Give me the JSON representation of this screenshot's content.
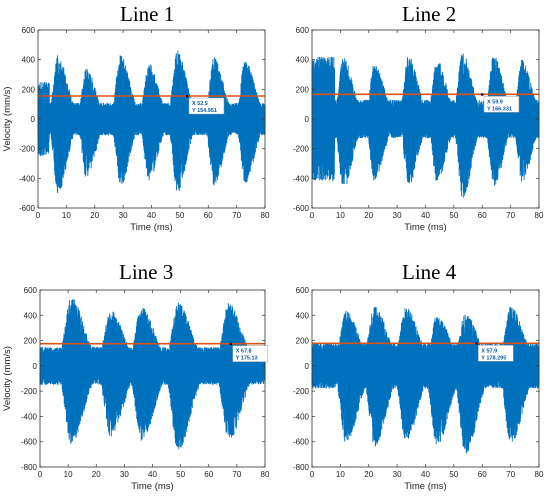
{
  "figure": {
    "panels": [
      {
        "title": "Line 1",
        "xlabel": "Time (ms)",
        "ylabel": "Velocity (mm/s)",
        "datatip": {
          "x_text": "X 52.5",
          "y_text": "Y 154.951"
        }
      },
      {
        "title": "Line 2",
        "xlabel": "Time (ms)",
        "ylabel": "",
        "datatip": {
          "x_text": "X 59.9",
          "y_text": "Y 166.331"
        }
      },
      {
        "title": "Line 3",
        "xlabel": "Time (ms)",
        "ylabel": "Velocity (mm/s)",
        "datatip": {
          "x_text": "X 67.8",
          "y_text": "Y 175.13"
        }
      },
      {
        "title": "Line 4",
        "xlabel": "Time (ms)",
        "ylabel": "",
        "datatip": {
          "x_text": "X 57.9",
          "y_text": "Y 178.295"
        }
      }
    ]
  },
  "colors": {
    "signal": "#0072BD",
    "threshold": "#D95319",
    "axes": "#333333",
    "datatip_text": "#0a5aa5"
  },
  "chart_data": [
    {
      "type": "line",
      "title": "Line 1",
      "xlabel": "Time (ms)",
      "ylabel": "Velocity (mm/s)",
      "xlim": [
        0,
        80
      ],
      "ylim": [
        -600,
        600
      ],
      "xticks": [
        0,
        10,
        20,
        30,
        40,
        50,
        60,
        70,
        80
      ],
      "yticks": [
        -600,
        -400,
        -200,
        0,
        200,
        400,
        600
      ],
      "grid": false,
      "envelope": {
        "burst_centers": [
          7,
          17,
          29,
          39,
          49,
          62,
          73
        ],
        "burst_peaks_upper": [
          430,
          340,
          440,
          380,
          470,
          420,
          410
        ],
        "burst_peaks_lower": [
          -500,
          -400,
          -460,
          -420,
          -500,
          -450,
          -440
        ],
        "burst_width_ms": 3.2,
        "baseline_amplitude": 110,
        "initial_segment": {
          "end_ms": 4,
          "amplitude": 250
        }
      },
      "threshold": 155,
      "datatip": {
        "x": 52.5,
        "y": 154.951
      }
    },
    {
      "type": "line",
      "title": "Line 2",
      "xlabel": "Time (ms)",
      "ylabel": "",
      "xlim": [
        0,
        80
      ],
      "ylim": [
        -600,
        600
      ],
      "xticks": [
        0,
        10,
        20,
        30,
        40,
        50,
        60,
        70,
        80
      ],
      "yticks": [
        -600,
        -400,
        -200,
        0,
        200,
        400,
        600
      ],
      "grid": false,
      "envelope": {
        "burst_centers": [
          11,
          22,
          34,
          44,
          53,
          64,
          74
        ],
        "burst_peaks_upper": [
          420,
          380,
          430,
          400,
          460,
          430,
          400
        ],
        "burst_peaks_lower": [
          -480,
          -420,
          -450,
          -430,
          -540,
          -470,
          -430
        ],
        "burst_width_ms": 3.2,
        "baseline_amplitude": 130,
        "initial_segment": {
          "end_ms": 8,
          "amplitude": 420
        }
      },
      "threshold": 166.331,
      "datatip": {
        "x": 59.9,
        "y": 166.331
      }
    },
    {
      "type": "line",
      "title": "Line 3",
      "xlabel": "Time (ms)",
      "ylabel": "Velocity (mm/s)",
      "xlim": [
        0,
        80
      ],
      "ylim": [
        -800,
        600
      ],
      "xticks": [
        0,
        10,
        20,
        30,
        40,
        50,
        60,
        70,
        80
      ],
      "yticks": [
        -800,
        -600,
        -400,
        -200,
        0,
        200,
        400,
        600
      ],
      "grid": false,
      "envelope": {
        "burst_centers": [
          11,
          25,
          36,
          49,
          67
        ],
        "burst_peaks_upper": [
          550,
          440,
          470,
          500,
          500
        ],
        "burst_peaks_lower": [
          -620,
          -560,
          -600,
          -680,
          -600
        ],
        "burst_width_ms": 4.5,
        "baseline_amplitude": 150,
        "initial_segment": {
          "end_ms": 3,
          "amplitude": 150
        }
      },
      "threshold": 175.13,
      "datatip": {
        "x": 67.8,
        "y": 175.13
      }
    },
    {
      "type": "line",
      "title": "Line 4",
      "xlabel": "Time (ms)",
      "ylabel": "",
      "xlim": [
        0,
        80
      ],
      "ylim": [
        -800,
        600
      ],
      "xticks": [
        0,
        10,
        20,
        30,
        40,
        50,
        60,
        70,
        80
      ],
      "yticks": [
        -800,
        -600,
        -400,
        -200,
        0,
        200,
        400,
        600
      ],
      "grid": false,
      "envelope": {
        "burst_centers": [
          12,
          22,
          33,
          44,
          54,
          70
        ],
        "burst_peaks_upper": [
          440,
          480,
          470,
          400,
          420,
          470
        ],
        "burst_peaks_lower": [
          -620,
          -640,
          -600,
          -640,
          -700,
          -620
        ],
        "burst_width_ms": 4.2,
        "baseline_amplitude": 180,
        "initial_segment": {
          "end_ms": 3,
          "amplitude": 180
        }
      },
      "threshold": 178.295,
      "datatip": {
        "x": 57.9,
        "y": 178.295
      }
    }
  ]
}
